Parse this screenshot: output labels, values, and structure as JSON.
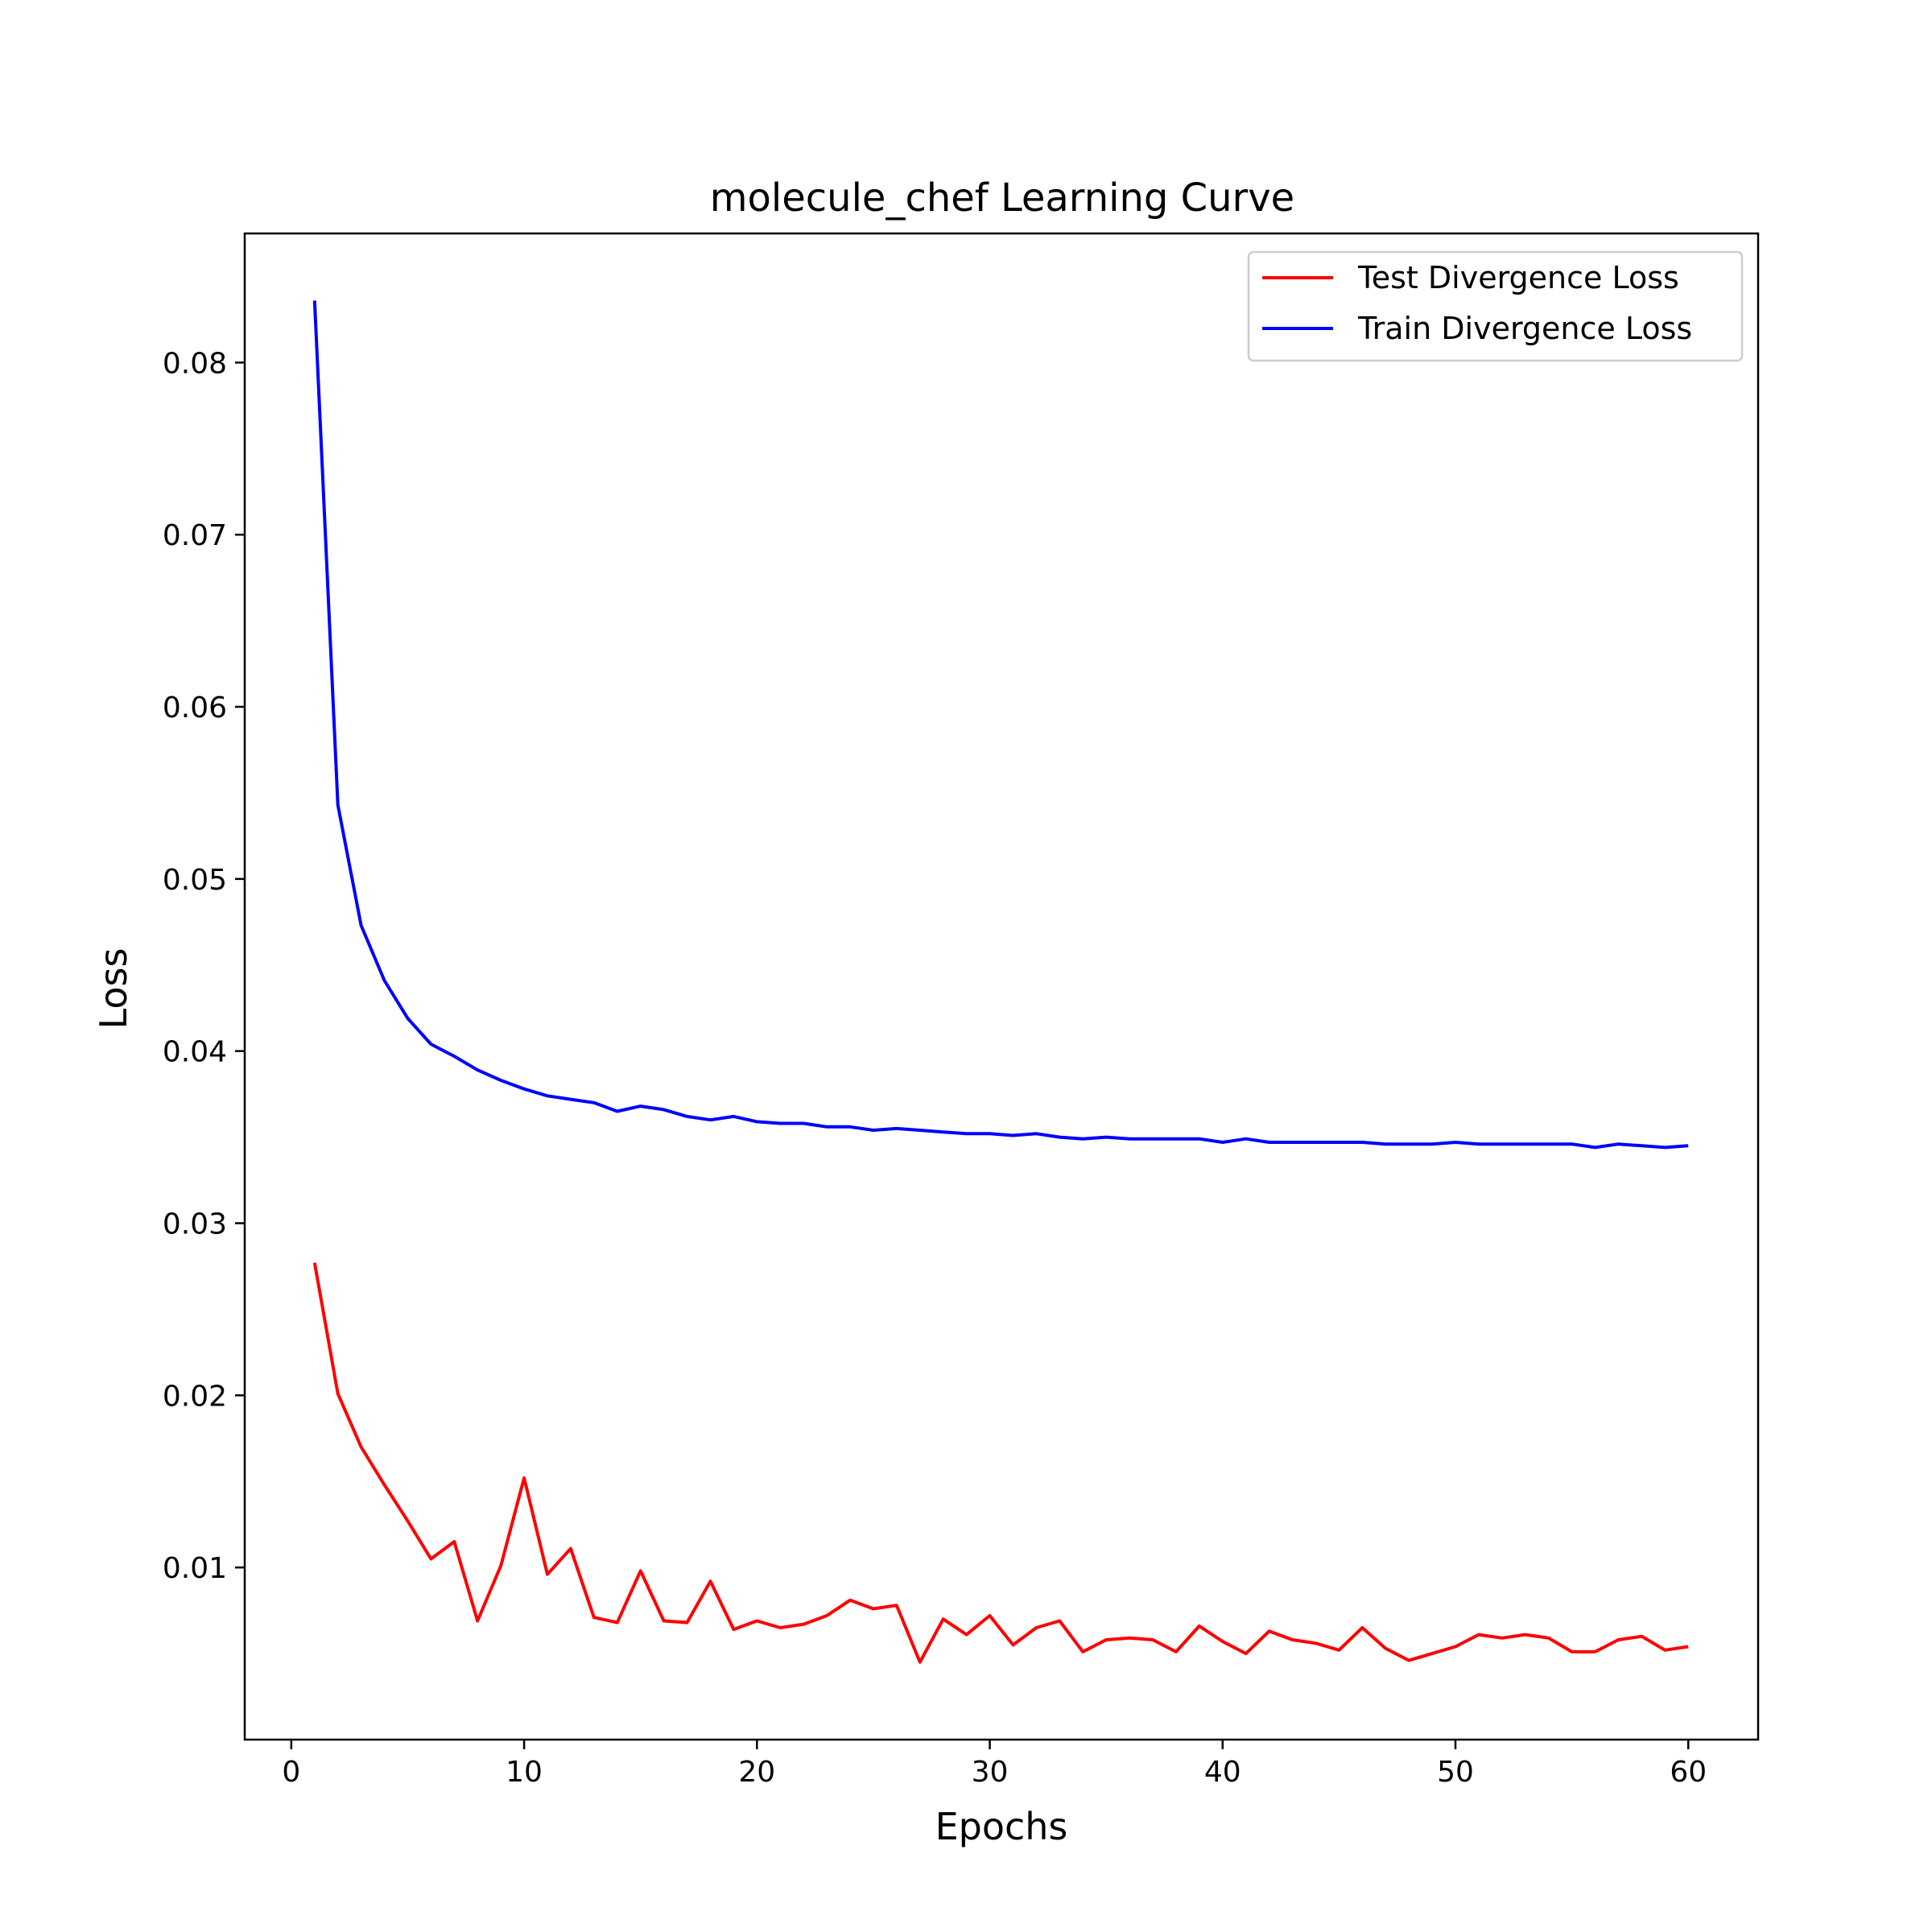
{
  "chart_data": {
    "type": "line",
    "title": "molecule_chef Learning Curve",
    "xlabel": "Epochs",
    "ylabel": "Loss",
    "xlim": [
      -2,
      63
    ],
    "ylim": [
      0.0,
      0.0875
    ],
    "xticks": [
      0,
      10,
      20,
      30,
      40,
      50,
      60
    ],
    "xtick_labels": [
      "0",
      "10",
      "20",
      "30",
      "40",
      "50",
      "60"
    ],
    "yticks": [
      0.01,
      0.02,
      0.03,
      0.04,
      0.05,
      0.06,
      0.07,
      0.08
    ],
    "ytick_labels": [
      "0.01",
      "0.02",
      "0.03",
      "0.04",
      "0.05",
      "0.06",
      "0.07",
      "0.08"
    ],
    "grid": false,
    "legend_position": "top-right",
    "x": [
      1,
      2,
      3,
      4,
      5,
      6,
      7,
      8,
      9,
      10,
      11,
      12,
      13,
      14,
      15,
      16,
      17,
      18,
      19,
      20,
      21,
      22,
      23,
      24,
      25,
      26,
      27,
      28,
      29,
      30,
      31,
      32,
      33,
      34,
      35,
      36,
      37,
      38,
      39,
      40,
      41,
      42,
      43,
      44,
      45,
      46,
      47,
      48,
      49,
      50,
      51,
      52,
      53,
      54,
      55,
      56,
      57,
      58,
      59,
      60
    ],
    "series": [
      {
        "name": "Test Divergence Loss",
        "color": "#ff0000",
        "values": [
          0.0277,
          0.0201,
          0.017,
          0.0148,
          0.0127,
          0.0105,
          0.0115,
          0.0069,
          0.0101,
          0.0152,
          0.0096,
          0.0111,
          0.0071,
          0.0068,
          0.0098,
          0.0069,
          0.0068,
          0.0092,
          0.0064,
          0.0069,
          0.0065,
          0.0067,
          0.0072,
          0.0081,
          0.0076,
          0.0078,
          0.0045,
          0.007,
          0.0061,
          0.0072,
          0.0055,
          0.0065,
          0.0069,
          0.0051,
          0.0058,
          0.0059,
          0.0058,
          0.0051,
          0.0066,
          0.0057,
          0.005,
          0.0063,
          0.0058,
          0.0056,
          0.0052,
          0.0065,
          0.0053,
          0.0046,
          0.005,
          0.0054,
          0.0061,
          0.0059,
          0.0061,
          0.0059,
          0.0051,
          0.0051,
          0.0058,
          0.006,
          0.0052,
          0.0054
        ]
      },
      {
        "name": "Train Divergence Loss",
        "color": "#0000ff",
        "values": [
          0.0836,
          0.0543,
          0.0473,
          0.0441,
          0.0419,
          0.0404,
          0.0397,
          0.0389,
          0.0383,
          0.0378,
          0.0374,
          0.0372,
          0.037,
          0.0365,
          0.0368,
          0.0366,
          0.0362,
          0.036,
          0.0362,
          0.0359,
          0.0358,
          0.0358,
          0.0356,
          0.0356,
          0.0354,
          0.0355,
          0.0354,
          0.0353,
          0.0352,
          0.0352,
          0.0351,
          0.0352,
          0.035,
          0.0349,
          0.035,
          0.0349,
          0.0349,
          0.0349,
          0.0349,
          0.0347,
          0.0349,
          0.0347,
          0.0347,
          0.0347,
          0.0347,
          0.0347,
          0.0346,
          0.0346,
          0.0346,
          0.0347,
          0.0346,
          0.0346,
          0.0346,
          0.0346,
          0.0346,
          0.0344,
          0.0346,
          0.0345,
          0.0344,
          0.0345
        ]
      }
    ]
  }
}
